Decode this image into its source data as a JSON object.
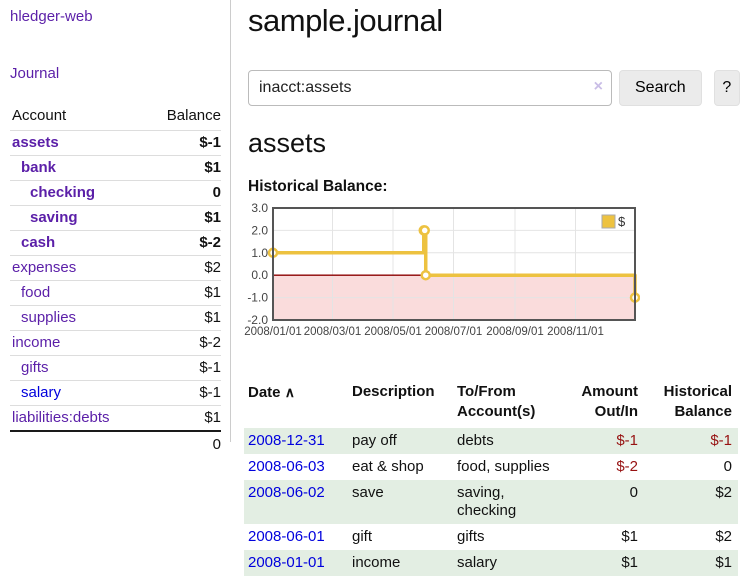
{
  "app": {
    "title": "hledger-web"
  },
  "palette": {
    "link_purple": "#5b1fa8",
    "link_blue": "#0000dd",
    "negative_red": "#971212",
    "muted_negative_red": "#b5706f",
    "row_highlight_green": "#e3eee3",
    "chart_line_yellow": "#EDC240",
    "chart_negative_region_pink": "#fadcdc",
    "chart_zero_line_red": "#8b0000"
  },
  "sidebar": {
    "journal_label": "Journal",
    "table": {
      "account_header": "Account",
      "balance_header": "Balance",
      "rows": [
        {
          "account": "assets",
          "indent": 1,
          "bold": true,
          "balance": "$-1",
          "balance_style": "negative"
        },
        {
          "account": "bank",
          "indent": 2,
          "bold": true,
          "balance": "$1",
          "balance_style": "normal"
        },
        {
          "account": "checking",
          "indent": 3,
          "bold": true,
          "balance": "0",
          "balance_style": "normal"
        },
        {
          "account": "saving",
          "indent": 3,
          "bold": true,
          "balance": "$1",
          "balance_style": "normal"
        },
        {
          "account": "cash",
          "indent": 2,
          "bold": true,
          "balance": "$-2",
          "balance_style": "negative"
        },
        {
          "account": "expenses",
          "indent": 1,
          "bold": false,
          "balance": "$2",
          "balance_style": "normal"
        },
        {
          "account": "food",
          "indent": 2,
          "bold": false,
          "balance": "$1",
          "balance_style": "normal"
        },
        {
          "account": "supplies",
          "indent": 2,
          "bold": false,
          "balance": "$1",
          "balance_style": "normal"
        },
        {
          "account": "income",
          "indent": 1,
          "bold": false,
          "balance": "$-2",
          "balance_style": "muted-negative"
        },
        {
          "account": "gifts",
          "indent": 2,
          "bold": false,
          "balance": "$-1",
          "balance_style": "muted-negative"
        },
        {
          "account": "salary",
          "indent": 2,
          "bold": false,
          "balance": "$-1",
          "balance_style": "muted-negative",
          "link_style": "blue"
        },
        {
          "account": "liabilities:debts",
          "indent": 1,
          "bold": false,
          "balance": "$1",
          "balance_style": "normal"
        }
      ],
      "total": "0"
    }
  },
  "main": {
    "title": "sample.journal",
    "search": {
      "value": "inacct:assets",
      "clear_icon": "×",
      "button_label": "Search",
      "help_label": "?"
    },
    "account_heading": "assets"
  },
  "chart_data": {
    "type": "line",
    "title": "Historical Balance:",
    "step": true,
    "grid": true,
    "x_range": [
      "2008-01-01",
      "2008-12-31"
    ],
    "ylim": [
      -2,
      3
    ],
    "yticks": [
      {
        "value": 3,
        "label": "3.0"
      },
      {
        "value": 2,
        "label": "2.0"
      },
      {
        "value": 1,
        "label": "1.0"
      },
      {
        "value": 0,
        "label": "0.0"
      },
      {
        "value": -1,
        "label": "-1.0"
      },
      {
        "value": -2,
        "label": "-2.0"
      }
    ],
    "xticks": [
      {
        "date": "2008-01-01",
        "label": "2008/01/01"
      },
      {
        "date": "2008-03-01",
        "label": "2008/03/01"
      },
      {
        "date": "2008-05-01",
        "label": "2008/05/01"
      },
      {
        "date": "2008-07-01",
        "label": "2008/07/01"
      },
      {
        "date": "2008-09-01",
        "label": "2008/09/01"
      },
      {
        "date": "2008-11-01",
        "label": "2008/11/01"
      }
    ],
    "series": [
      {
        "name": "$",
        "points": [
          {
            "date": "2008-01-01",
            "value": 1
          },
          {
            "date": "2008-06-01",
            "value": 2
          },
          {
            "date": "2008-06-02",
            "value": 2
          },
          {
            "date": "2008-06-03",
            "value": 0
          },
          {
            "date": "2008-12-31",
            "value": -1
          }
        ]
      }
    ],
    "legend": {
      "label": "$",
      "position": "top-right"
    }
  },
  "register": {
    "headers": {
      "date": "Date",
      "sort_icon": "∧",
      "description": "Description",
      "accounts": "To/From Account(s)",
      "amount": "Amount Out/In",
      "balance": "Historical Balance"
    },
    "rows": [
      {
        "date": "2008-12-31",
        "description": "pay off",
        "accounts": "debts",
        "amount": "$-1",
        "amount_style": "negative",
        "balance": "$-1",
        "balance_style": "negative"
      },
      {
        "date": "2008-06-03",
        "description": "eat & shop",
        "accounts": "food, supplies",
        "amount": "$-2",
        "amount_style": "negative",
        "balance": "0",
        "balance_style": "normal"
      },
      {
        "date": "2008-06-02",
        "description": "save",
        "accounts": "saving, checking",
        "amount": "0",
        "amount_style": "normal",
        "balance": "$2",
        "balance_style": "normal"
      },
      {
        "date": "2008-06-01",
        "description": "gift",
        "accounts": "gifts",
        "amount": "$1",
        "amount_style": "normal",
        "balance": "$2",
        "balance_style": "normal"
      },
      {
        "date": "2008-01-01",
        "description": "income",
        "accounts": "salary",
        "amount": "$1",
        "amount_style": "normal",
        "balance": "$1",
        "balance_style": "normal"
      }
    ]
  }
}
